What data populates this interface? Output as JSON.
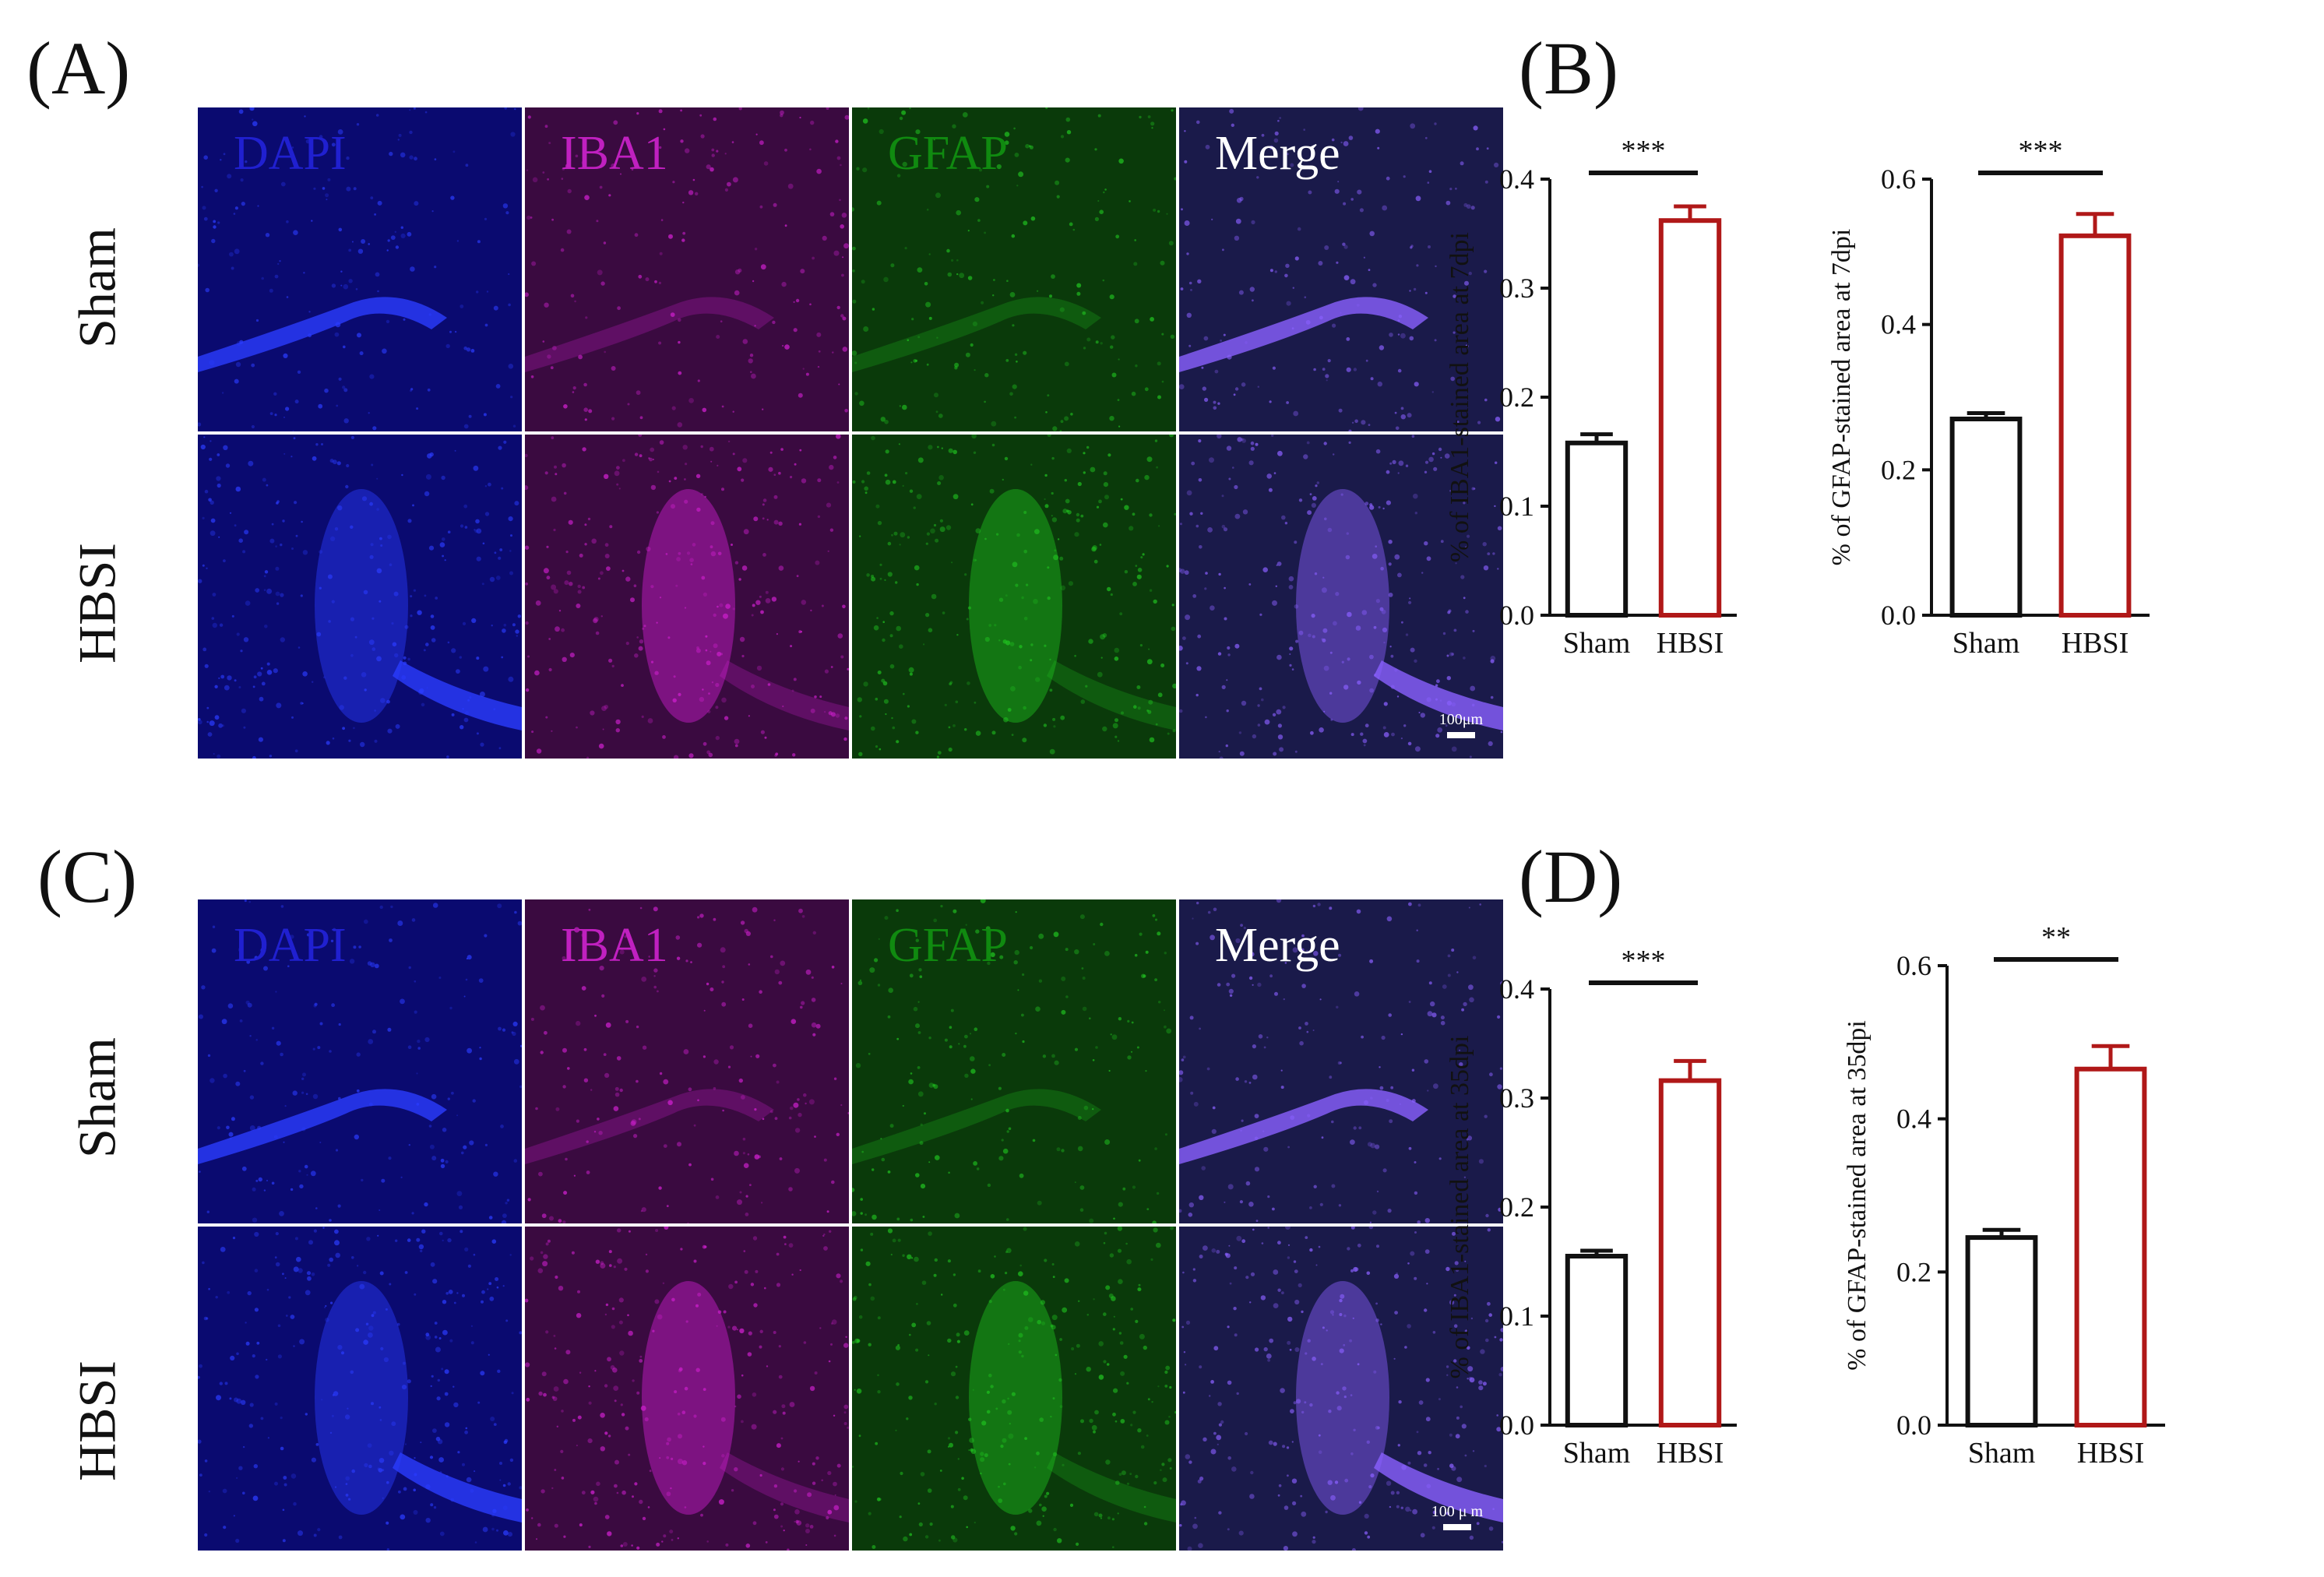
{
  "panels": {
    "A": "(A)",
    "B": "(B)",
    "C": "(C)",
    "D": "(D)"
  },
  "channels": [
    "DAPI",
    "IBA1",
    "GFAP",
    "Merge"
  ],
  "rows": [
    "Sham",
    "HBSI"
  ],
  "scalebars": {
    "A": "100μm",
    "C": "100 μ m"
  },
  "colors": {
    "dapi_bg": "#0a0a70",
    "iba1_bg": "#3a0a40",
    "gfap_bg": "#0a3a0a",
    "merge_bg": "#1a1a4a",
    "sham_bar": "#111111",
    "hbsi_bar": "#b01818"
  },
  "chart_data": [
    {
      "type": "bar",
      "panel": "B",
      "categories": [
        "Sham",
        "HBSI"
      ],
      "values": [
        0.158,
        0.362
      ],
      "errors": [
        0.008,
        0.013
      ],
      "ylabel": "% of IBA1-stained area at 7dpi",
      "ylim": [
        0,
        0.4
      ],
      "yticks": [
        "0.0",
        "0.1",
        "0.2",
        "0.3",
        "0.4"
      ],
      "significance": "***"
    },
    {
      "type": "bar",
      "panel": "B",
      "categories": [
        "Sham",
        "HBSI"
      ],
      "values": [
        0.27,
        0.522
      ],
      "errors": [
        0.008,
        0.03
      ],
      "ylabel": "% of GFAP-stained area at 7dpi",
      "ylim": [
        0,
        0.6
      ],
      "yticks": [
        "0.0",
        "0.2",
        "0.4",
        "0.6"
      ],
      "significance": "***"
    },
    {
      "type": "bar",
      "panel": "D",
      "categories": [
        "Sham",
        "HBSI"
      ],
      "values": [
        0.155,
        0.316
      ],
      "errors": [
        0.005,
        0.018
      ],
      "ylabel": "% of IBA1-stained area at 35dpi",
      "ylim": [
        0,
        0.4
      ],
      "yticks": [
        "0.0",
        "0.1",
        "0.2",
        "0.3",
        "0.4"
      ],
      "significance": "***"
    },
    {
      "type": "bar",
      "panel": "D",
      "categories": [
        "Sham",
        "HBSI"
      ],
      "values": [
        0.245,
        0.465
      ],
      "errors": [
        0.01,
        0.03
      ],
      "ylabel": "% of GFAP-stained area at 35dpi",
      "ylim": [
        0,
        0.6
      ],
      "yticks": [
        "0.0",
        "0.2",
        "0.4",
        "0.6"
      ],
      "significance": "**"
    }
  ]
}
